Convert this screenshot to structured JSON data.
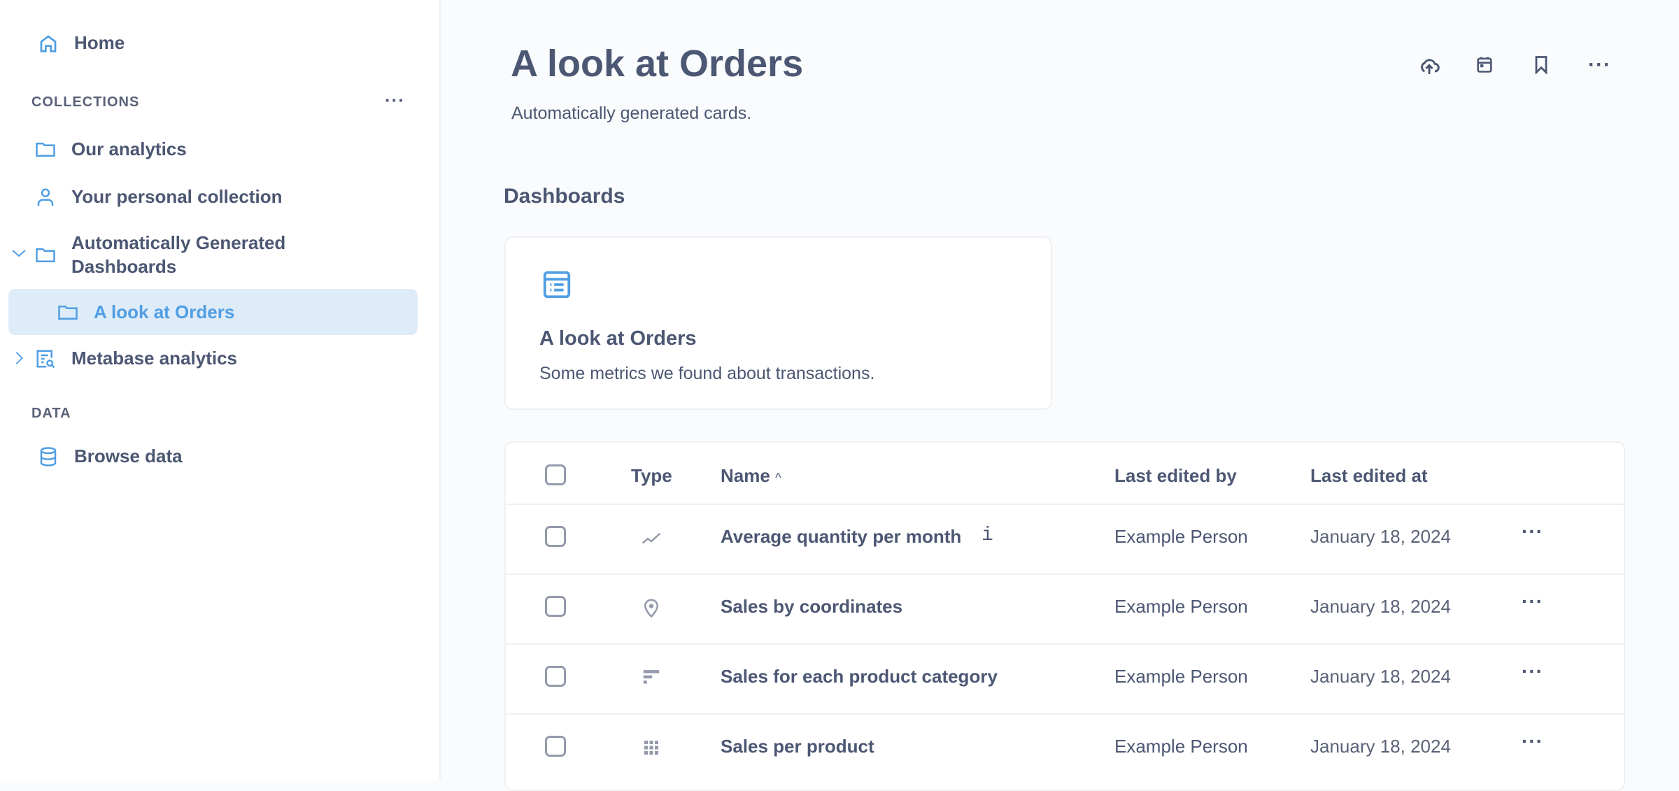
{
  "sidebar": {
    "home": "Home",
    "collections_label": "COLLECTIONS",
    "items": [
      {
        "label": "Our analytics",
        "icon": "folder-icon"
      },
      {
        "label": "Your personal collection",
        "icon": "person-icon"
      },
      {
        "label": "Automatically Generated Dashboards",
        "icon": "folder-icon",
        "expanded": true
      },
      {
        "label": "A look at Orders",
        "icon": "folder-icon",
        "selected": true
      },
      {
        "label": "Metabase analytics",
        "icon": "audit-icon",
        "expanded": false
      }
    ],
    "data_label": "DATA",
    "browse": "Browse data"
  },
  "header": {
    "title": "A look at Orders",
    "description": "Automatically generated cards."
  },
  "dashboards": {
    "heading": "Dashboards",
    "card": {
      "title": "A look at Orders",
      "description": "Some metrics we found about transactions."
    }
  },
  "table": {
    "columns": {
      "type": "Type",
      "name": "Name",
      "edited_by": "Last edited by",
      "edited_at": "Last edited at"
    },
    "rows": [
      {
        "type": "line-icon",
        "name": "Average quantity per month",
        "by": "Example Person",
        "at": "January 18, 2024",
        "info": true
      },
      {
        "type": "pin-icon",
        "name": "Sales by coordinates",
        "by": "Example Person",
        "at": "January 18, 2024"
      },
      {
        "type": "bar-icon",
        "name": "Sales for each product category",
        "by": "Example Person",
        "at": "January 18, 2024"
      },
      {
        "type": "grid-icon",
        "name": "Sales per product",
        "by": "Example Person",
        "at": "January 18, 2024"
      }
    ]
  },
  "colors": {
    "accent": "#509ee3",
    "text": "#4c5773",
    "selected_bg": "#deebf8"
  }
}
